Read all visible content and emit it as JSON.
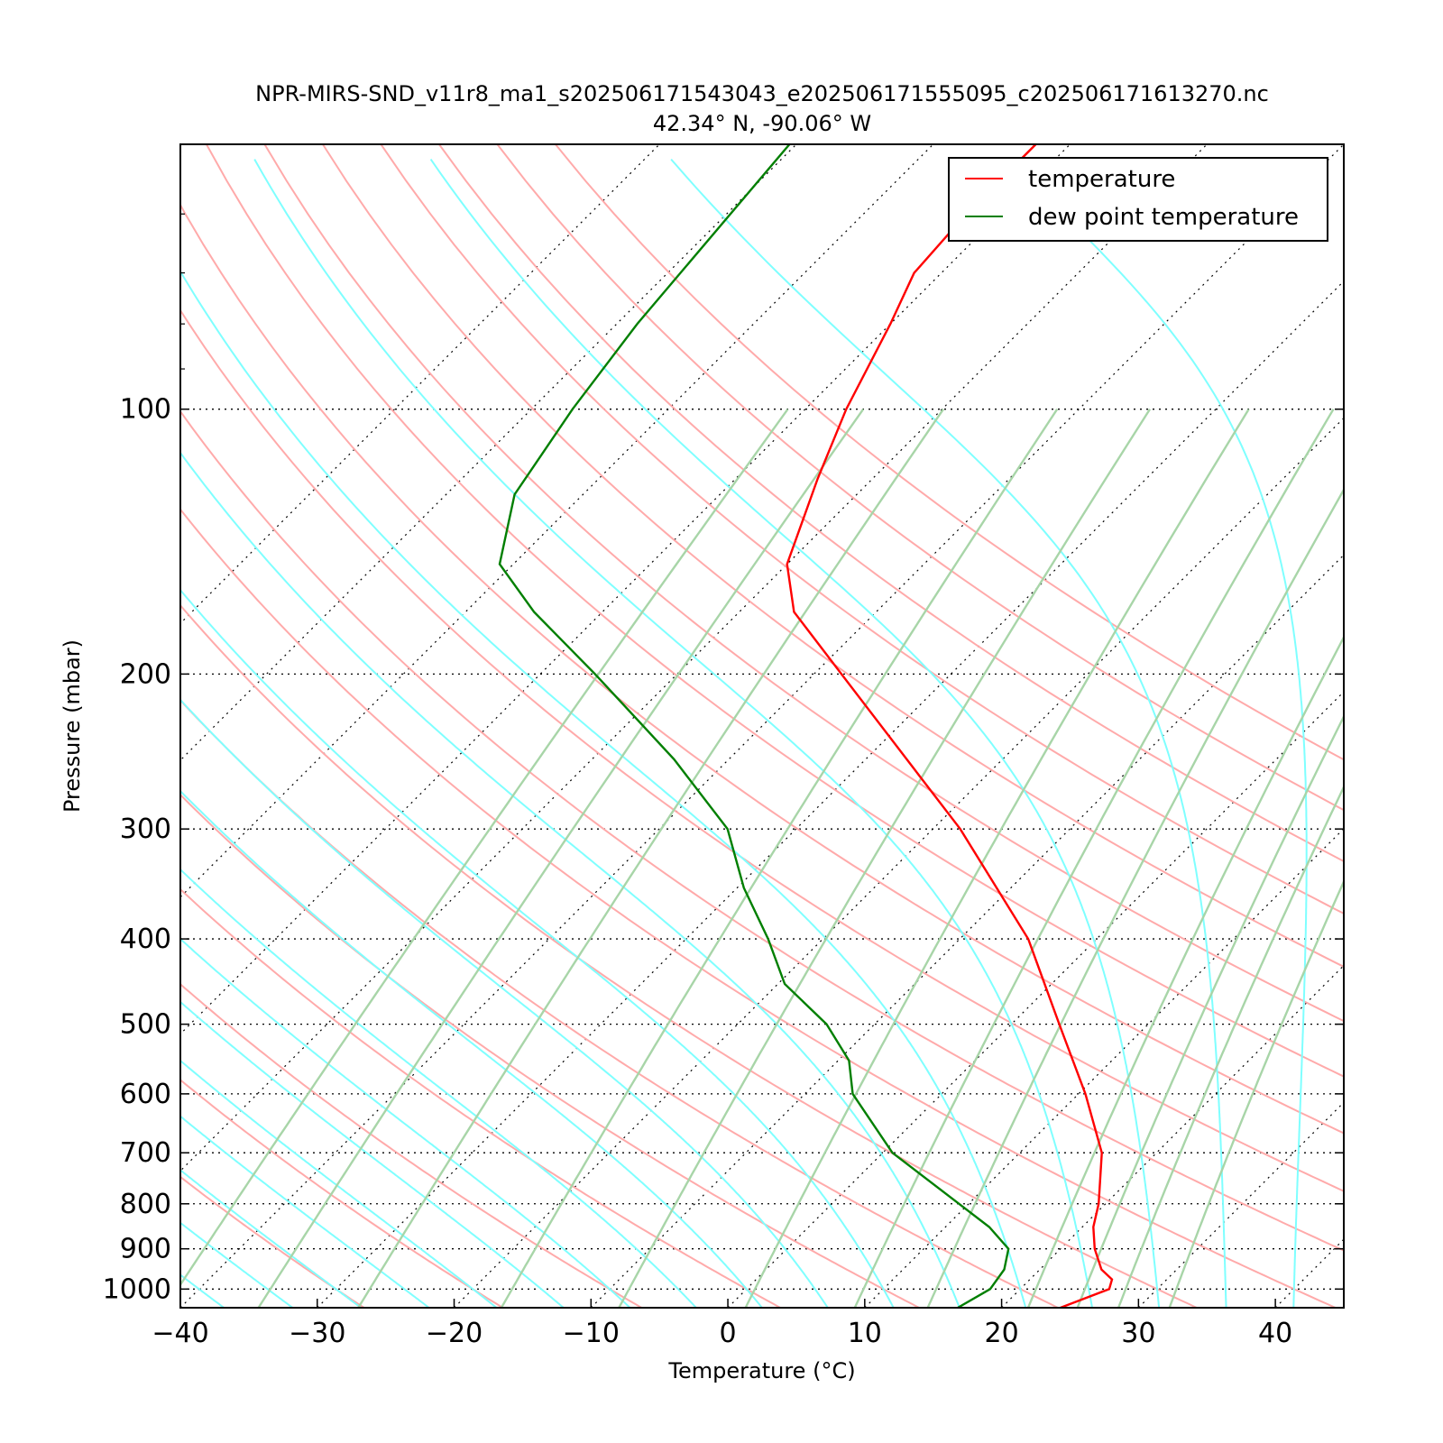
{
  "chart_data": {
    "type": "line",
    "title": "NPR-MIRS-SND_v11r8_ma1_s202506171543043_e202506171555095_c202506171613270.nc",
    "subtitle": "42.34° N, -90.06° W",
    "xlabel": "Temperature (°C)",
    "ylabel": "Pressure (mbar)",
    "xlim": [
      -40,
      45
    ],
    "ylim": [
      1050,
      50
    ],
    "y_scale": "log",
    "grid": true,
    "legend_position": "top-right",
    "x_ticks": [
      -40,
      -30,
      -20,
      -10,
      0,
      10,
      20,
      30,
      40
    ],
    "x_tick_labels": [
      "−40",
      "−30",
      "−20",
      "−10",
      "0",
      "10",
      "20",
      "30",
      "40"
    ],
    "y_ticks": [
      100,
      200,
      300,
      400,
      500,
      600,
      700,
      800,
      900,
      1000
    ],
    "y_tick_labels": [
      "100",
      "200",
      "300",
      "400",
      "500",
      "600",
      "700",
      "800",
      "900",
      "1000"
    ],
    "skew_degrees": 45,
    "colors": {
      "temperature": "#ff0000",
      "dewpoint": "#007f00",
      "dry_adiabats": "#ffaaaa",
      "moist_adiabats": "#7fffff",
      "mixing_ratio": "#a8d5a8",
      "isotherms": "#000000"
    },
    "series": [
      {
        "name": "temperature",
        "color": "#ff0000",
        "points": [
          {
            "p": 1050,
            "t": 24.3
          },
          {
            "p": 1000,
            "t": 26.5
          },
          {
            "p": 975,
            "t": 26.0
          },
          {
            "p": 950,
            "t": 24.5
          },
          {
            "p": 900,
            "t": 22.5
          },
          {
            "p": 850,
            "t": 20.8
          },
          {
            "p": 800,
            "t": 19.5
          },
          {
            "p": 700,
            "t": 16.0
          },
          {
            "p": 600,
            "t": 10.5
          },
          {
            "p": 500,
            "t": 3.5
          },
          {
            "p": 400,
            "t": -5.0
          },
          {
            "p": 300,
            "t": -18.0
          },
          {
            "p": 250,
            "t": -27.0
          },
          {
            "p": 200,
            "t": -38.0
          },
          {
            "p": 170,
            "t": -46.0
          },
          {
            "p": 150,
            "t": -50.0
          },
          {
            "p": 120,
            "t": -54.0
          },
          {
            "p": 100,
            "t": -57.0
          },
          {
            "p": 80,
            "t": -60.0
          },
          {
            "p": 70,
            "t": -62.0
          },
          {
            "p": 60,
            "t": -62.5
          },
          {
            "p": 50,
            "t": -62.5
          }
        ]
      },
      {
        "name": "dew point temperature",
        "color": "#007f00",
        "points": [
          {
            "p": 1050,
            "t": 16.8
          },
          {
            "p": 1000,
            "t": 17.8
          },
          {
            "p": 950,
            "t": 17.4
          },
          {
            "p": 900,
            "t": 16.2
          },
          {
            "p": 850,
            "t": 13.2
          },
          {
            "p": 800,
            "t": 9.3
          },
          {
            "p": 700,
            "t": 0.7
          },
          {
            "p": 600,
            "t": -6.5
          },
          {
            "p": 550,
            "t": -9.2
          },
          {
            "p": 500,
            "t": -13.5
          },
          {
            "p": 450,
            "t": -19.5
          },
          {
            "p": 400,
            "t": -24.0
          },
          {
            "p": 350,
            "t": -29.5
          },
          {
            "p": 300,
            "t": -35.0
          },
          {
            "p": 250,
            "t": -44.0
          },
          {
            "p": 200,
            "t": -56.0
          },
          {
            "p": 170,
            "t": -65.0
          },
          {
            "p": 150,
            "t": -71.0
          },
          {
            "p": 125,
            "t": -75.0
          },
          {
            "p": 100,
            "t": -77.0
          },
          {
            "p": 80,
            "t": -78.5
          },
          {
            "p": 50,
            "t": -80.5
          }
        ]
      }
    ],
    "background_lines": {
      "isotherms": [
        -90,
        -80,
        -70,
        -60,
        -50,
        -40,
        -30,
        -20,
        -10,
        0,
        10,
        20,
        30,
        40
      ],
      "dry_adiabats_theta_c": [
        -30,
        -20,
        -10,
        0,
        10,
        20,
        30,
        40,
        50,
        60,
        70,
        80,
        90,
        100,
        110,
        120,
        130,
        140
      ],
      "moist_adiabats_t0_c": [
        -40,
        -35,
        -30,
        -25,
        -20,
        -15,
        -10,
        -5,
        0,
        5,
        10,
        15,
        20,
        25,
        30,
        35,
        40
      ],
      "mixing_ratios_g_per_kg": [
        0.1,
        0.2,
        0.4,
        1,
        2,
        4,
        7,
        10,
        16,
        20,
        24,
        30
      ]
    }
  },
  "legend": {
    "items": [
      {
        "label": "temperature",
        "color": "#ff0000"
      },
      {
        "label": "dew point temperature",
        "color": "#007f00"
      }
    ]
  }
}
